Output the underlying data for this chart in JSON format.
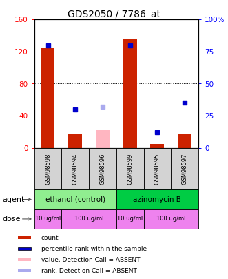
{
  "title": "GDS2050 / 7786_at",
  "samples": [
    "GSM98598",
    "GSM98594",
    "GSM98596",
    "GSM98599",
    "GSM98595",
    "GSM98597"
  ],
  "counts": [
    125,
    18,
    null,
    135,
    5,
    18
  ],
  "ranks_present": [
    80,
    null,
    null,
    80,
    null,
    null
  ],
  "absent_counts": [
    null,
    null,
    22,
    null,
    null,
    null
  ],
  "absent_ranks": [
    null,
    null,
    32,
    null,
    null,
    null
  ],
  "present_ranks_other": [
    null,
    30,
    null,
    null,
    12,
    35
  ],
  "agent_groups": [
    {
      "label": "ethanol (control)",
      "start": 0,
      "end": 3,
      "color": "#90ee90"
    },
    {
      "label": "azinomycin B",
      "start": 3,
      "end": 6,
      "color": "#00cc44"
    }
  ],
  "dose_groups": [
    {
      "label": "10 ug/ml",
      "start": 0,
      "end": 1,
      "color": "#ee82ee"
    },
    {
      "label": "100 ug/ml",
      "start": 1,
      "end": 3,
      "color": "#dd44dd"
    },
    {
      "label": "10 ug/ml",
      "start": 3,
      "end": 4,
      "color": "#ee82ee"
    },
    {
      "label": "100 ug/ml",
      "start": 4,
      "end": 6,
      "color": "#dd44dd"
    }
  ],
  "bar_color": "#cc2200",
  "rank_color": "#0000cc",
  "absent_bar_color": "#ffb6c1",
  "absent_rank_color": "#aaaaee",
  "ylim_left": [
    0,
    160
  ],
  "ylim_right": [
    0,
    100
  ],
  "yticks_left": [
    0,
    40,
    80,
    120,
    160
  ],
  "yticks_right": [
    0,
    25,
    50,
    75,
    100
  ],
  "ytick_labels_left": [
    "0",
    "40",
    "80",
    "120",
    "160"
  ],
  "ytick_labels_right": [
    "0",
    "25",
    "50",
    "75",
    "100%"
  ],
  "grid_ticks": [
    40,
    80,
    120
  ],
  "plot_bg": "#ffffff",
  "sample_bg": "#d3d3d3"
}
